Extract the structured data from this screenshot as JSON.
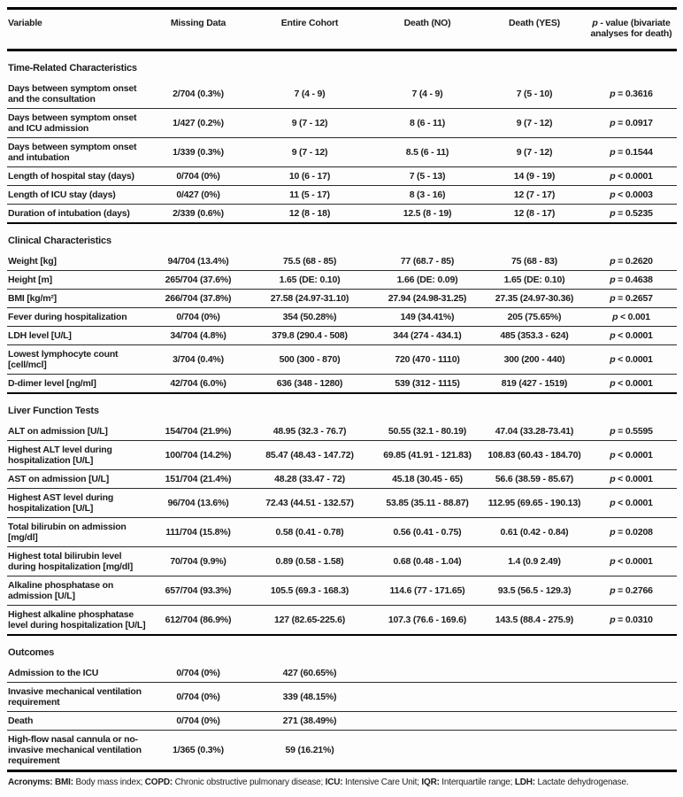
{
  "table": {
    "columns": [
      "Variable",
      "Missing Data",
      "Entire Cohort",
      "Death (NO)",
      "Death (YES)",
      "p - value (bivariate analyses for death)"
    ],
    "sections": [
      {
        "title": "Time-Related Characteristics",
        "rows": [
          {
            "variable": "Days between symptom onset and the consultation",
            "missing": "2/704 (0.3%)",
            "cohort": "7 (4 - 9)",
            "death_no": "7 (4 - 9)",
            "death_yes": "7 (5 - 10)",
            "p": "p = 0.3616"
          },
          {
            "variable": "Days between symptom onset and ICU admission",
            "missing": "1/427 (0.2%)",
            "cohort": "9 (7 - 12)",
            "death_no": "8 (6 - 11)",
            "death_yes": "9 (7 - 12)",
            "p": "p = 0.0917"
          },
          {
            "variable": "Days between symptom onset and intubation",
            "missing": "1/339 (0.3%)",
            "cohort": "9 (7 - 12)",
            "death_no": "8.5 (6 - 11)",
            "death_yes": "9 (7 - 12)",
            "p": "p = 0.1544"
          },
          {
            "variable": "Length of hospital stay (days)",
            "missing": "0/704 (0%)",
            "cohort": "10 (6 - 17)",
            "death_no": "7 (5 - 13)",
            "death_yes": "14 (9 - 19)",
            "p": "p < 0.0001"
          },
          {
            "variable": "Length of ICU stay (days)",
            "missing": "0/427 (0%)",
            "cohort": "11 (5 - 17)",
            "death_no": "8 (3 - 16)",
            "death_yes": "12 (7 - 17)",
            "p": "p < 0.0003"
          },
          {
            "variable": "Duration of intubation (days)",
            "missing": "2/339 (0.6%)",
            "cohort": "12 (8 - 18)",
            "death_no": "12.5 (8 - 19)",
            "death_yes": "12 (8 - 17)",
            "p": "p = 0.5235"
          }
        ]
      },
      {
        "title": "Clinical Characteristics",
        "rows": [
          {
            "variable": "Weight [kg]",
            "missing": "94/704 (13.4%)",
            "cohort": "75.5 (68 - 85)",
            "death_no": "77 (68.7 - 85)",
            "death_yes": "75 (68 - 83)",
            "p": "p = 0.2620"
          },
          {
            "variable": "Height [m]",
            "missing": "265/704 (37.6%)",
            "cohort": "1.65 (DE: 0.10)",
            "death_no": "1.66 (DE: 0.09)",
            "death_yes": "1.65 (DE: 0.10)",
            "p": "p = 0.4638"
          },
          {
            "variable": "BMI [kg/m²]",
            "missing": "266/704 (37.8%)",
            "cohort": "27.58 (24.97-31.10)",
            "death_no": "27.94 (24.98-31.25)",
            "death_yes": "27.35 (24.97-30.36)",
            "p": "p = 0.2657"
          },
          {
            "variable": "Fever during hospitalization",
            "missing": "0/704 (0%)",
            "cohort": "354 (50.28%)",
            "death_no": "149 (34.41%)",
            "death_yes": "205 (75.65%)",
            "p": "p < 0.001"
          },
          {
            "variable": "LDH level [U/L]",
            "missing": "34/704 (4.8%)",
            "cohort": "379.8 (290.4 - 508)",
            "death_no": "344 (274 - 434.1)",
            "death_yes": "485 (353.3 - 624)",
            "p": "p < 0.0001"
          },
          {
            "variable": "Lowest lymphocyte count [cell/mcl]",
            "missing": "3/704 (0.4%)",
            "cohort": "500 (300 - 870)",
            "death_no": "720 (470 - 1110)",
            "death_yes": "300 (200 - 440)",
            "p": "p < 0.0001"
          },
          {
            "variable": "D-dimer level [ng/ml]",
            "missing": "42/704 (6.0%)",
            "cohort": "636 (348 - 1280)",
            "death_no": "539 (312 - 1115)",
            "death_yes": "819 (427 - 1519)",
            "p": "p < 0.0001"
          }
        ]
      },
      {
        "title": "Liver Function Tests",
        "rows": [
          {
            "variable": "ALT on admission [U/L]",
            "missing": "154/704 (21.9%)",
            "cohort": "48.95 (32.3 - 76.7)",
            "death_no": "50.55 (32.1 - 80.19)",
            "death_yes": "47.04 (33.28-73.41)",
            "p": "p = 0.5595"
          },
          {
            "variable": "Highest ALT level during hospitalization [U/L]",
            "missing": "100/704 (14.2%)",
            "cohort": "85.47 (48.43 - 147.72)",
            "death_no": "69.85 (41.91 - 121.83)",
            "death_yes": "108.83 (60.43 - 184.70)",
            "p": "p < 0.0001"
          },
          {
            "variable": "AST on admission [U/L]",
            "missing": "151/704 (21.4%)",
            "cohort": "48.28 (33.47 - 72)",
            "death_no": "45.18 (30.45 - 65)",
            "death_yes": "56.6 (38.59 - 85.67)",
            "p": "p < 0.0001"
          },
          {
            "variable": "Highest AST level during hospitalization [U/L]",
            "missing": "96/704 (13.6%)",
            "cohort": "72.43 (44.51 - 132.57)",
            "death_no": "53.85 (35.11 - 88.87)",
            "death_yes": "112.95 (69.65 - 190.13)",
            "p": "p < 0.0001"
          },
          {
            "variable": "Total bilirubin on admission [mg/dl]",
            "missing": "111/704 (15.8%)",
            "cohort": "0.58 (0.41 - 0.78)",
            "death_no": "0.56 (0.41 - 0.75)",
            "death_yes": "0.61 (0.42 - 0.84)",
            "p": "p = 0.0208"
          },
          {
            "variable": "Highest total bilirubin level during hospitalization [mg/dl]",
            "missing": "70/704 (9.9%)",
            "cohort": "0.89 (0.58 - 1.58)",
            "death_no": "0.68 (0.48 - 1.04)",
            "death_yes": "1.4 (0.9 2.49)",
            "p": "p < 0.0001"
          },
          {
            "variable": "Alkaline phosphatase on admission [U/L]",
            "missing": "657/704 (93.3%)",
            "cohort": "105.5 (69.3 - 168.3)",
            "death_no": "114.6 (77 - 171.65)",
            "death_yes": "93.5 (56.5 - 129.3)",
            "p": "p = 0.2766"
          },
          {
            "variable": "Highest alkaline phosphatase level during hospitalization [U/L]",
            "missing": "612/704 (86.9%)",
            "cohort": "127 (82.65-225.6)",
            "death_no": "107.3 (76.6 - 169.6)",
            "death_yes": "143.5 (88.4 - 275.9)",
            "p": "p = 0.0310"
          }
        ]
      },
      {
        "title": "Outcomes",
        "rows": [
          {
            "variable": "Admission to the ICU",
            "missing": "0/704 (0%)",
            "cohort": "427 (60.65%)",
            "death_no": "",
            "death_yes": "",
            "p": ""
          },
          {
            "variable": "Invasive mechanical ventilation requirement",
            "missing": "0/704 (0%)",
            "cohort": "339 (48.15%)",
            "death_no": "",
            "death_yes": "",
            "p": ""
          },
          {
            "variable": "Death",
            "missing": "0/704 (0%)",
            "cohort": "271 (38.49%)",
            "death_no": "",
            "death_yes": "",
            "p": ""
          },
          {
            "variable": "High-flow nasal cannula or no-invasive mechanical ventilation requirement",
            "missing": "1/365 (0.3%)",
            "cohort": "59 (16.21%)",
            "death_no": "",
            "death_yes": "",
            "p": ""
          }
        ]
      }
    ]
  },
  "footer": {
    "prefix": "Acronyms:",
    "items": [
      {
        "abbr": "BMI:",
        "desc": "Body mass index;"
      },
      {
        "abbr": "COPD:",
        "desc": "Chronic obstructive pulmonary disease;"
      },
      {
        "abbr": "ICU:",
        "desc": "Intensive Care Unit;"
      },
      {
        "abbr": "IQR:",
        "desc": "Interquartile range;"
      },
      {
        "abbr": "LDH:",
        "desc": "Lactate dehydrogenase."
      }
    ]
  }
}
